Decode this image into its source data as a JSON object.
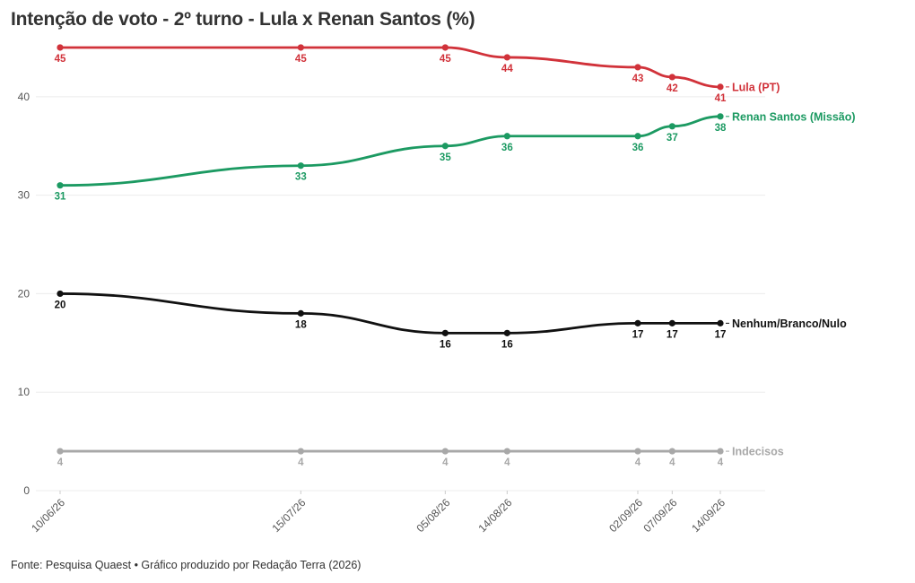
{
  "title": "Intenção de voto - 2º turno - Lula x Renan Santos (%)",
  "footer": "Fonte: Pesquisa Quaest • Gráfico produzido por Redação Terra (2026)",
  "chart_data": {
    "type": "line",
    "title": "Intenção de voto - 2º turno - Lula x Renan Santos (%)",
    "xlabel": "",
    "ylabel": "",
    "x": [
      "10/06/26",
      "15/07/26",
      "05/08/26",
      "14/08/26",
      "02/09/26",
      "07/09/26",
      "14/09/26"
    ],
    "x_days": [
      0,
      35,
      56,
      65,
      84,
      89,
      96
    ],
    "ylim": [
      0,
      46
    ],
    "yticks": [
      0,
      10,
      20,
      30,
      40
    ],
    "grid": true,
    "legend": "direct labels at line ends",
    "series": [
      {
        "name": "Lula (PT)",
        "color": "#d1323a",
        "values": [
          45,
          45,
          45,
          44,
          43,
          42,
          41
        ],
        "label_pos": "below"
      },
      {
        "name": "Renan Santos (Missão)",
        "color": "#1c9a62",
        "values": [
          31,
          33,
          35,
          36,
          36,
          37,
          38
        ],
        "label_pos": "below"
      },
      {
        "name": "Nenhum/Branco/Nulo",
        "color": "#111111",
        "values": [
          20,
          18,
          16,
          16,
          17,
          17,
          17
        ],
        "label_pos": "below"
      },
      {
        "name": "Indecisos",
        "color": "#a8a8a8",
        "values": [
          4,
          4,
          4,
          4,
          4,
          4,
          4
        ],
        "label_pos": "below"
      }
    ]
  }
}
